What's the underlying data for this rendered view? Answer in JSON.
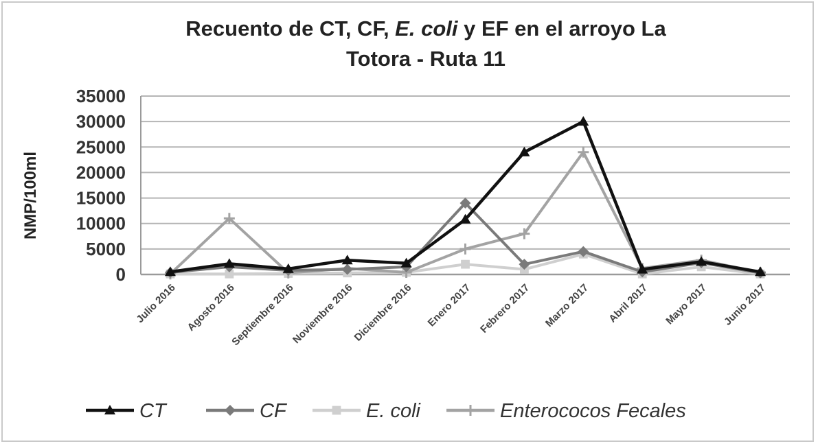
{
  "chart_data": {
    "type": "line",
    "title_line1_a": "Recuento de CT, CF, ",
    "title_line1_b": "E. coli",
    "title_line1_c": " y EF en el arroyo La",
    "title_line2": "Totora - Ruta 11",
    "ylabel": "NMP/100ml",
    "xlabel": "",
    "ylim": [
      0,
      35000
    ],
    "yticks": [
      "35000",
      "30000",
      "25000",
      "20000",
      "15000",
      "10000",
      "5000",
      "0"
    ],
    "ytick_values": [
      35000,
      30000,
      25000,
      20000,
      15000,
      10000,
      5000,
      0
    ],
    "grid": true,
    "legend_position": "bottom",
    "categories": [
      "Julio 2016",
      "Agosto 2016",
      "Septiembre 2016",
      "Noviembre 2016",
      "Diciembre 2016",
      "Enero 2017",
      "Febrero 2017",
      "Marzo 2017",
      "Abril 2017",
      "Mayo 2017",
      "Junio 2017"
    ],
    "series": [
      {
        "name": "CT",
        "color": "#111111",
        "marker": "triangle",
        "values": [
          500,
          2100,
          1100,
          2800,
          2200,
          10800,
          24000,
          30000,
          1000,
          2500,
          500
        ]
      },
      {
        "name": "CF",
        "color": "#7a7a7a",
        "marker": "diamond",
        "values": [
          400,
          1500,
          800,
          1000,
          1500,
          14000,
          2000,
          4500,
          500,
          2300,
          300
        ]
      },
      {
        "name": "E. coli",
        "color": "#cfcfcf",
        "marker": "square",
        "values": [
          100,
          100,
          200,
          300,
          400,
          2000,
          1000,
          4000,
          100,
          1500,
          100
        ]
      },
      {
        "name": "Enterococos Fecales",
        "color": "#a3a3a3",
        "marker": "plus",
        "values": [
          100,
          11000,
          300,
          1200,
          400,
          5000,
          8000,
          24000,
          1200,
          2800,
          400
        ]
      }
    ]
  }
}
